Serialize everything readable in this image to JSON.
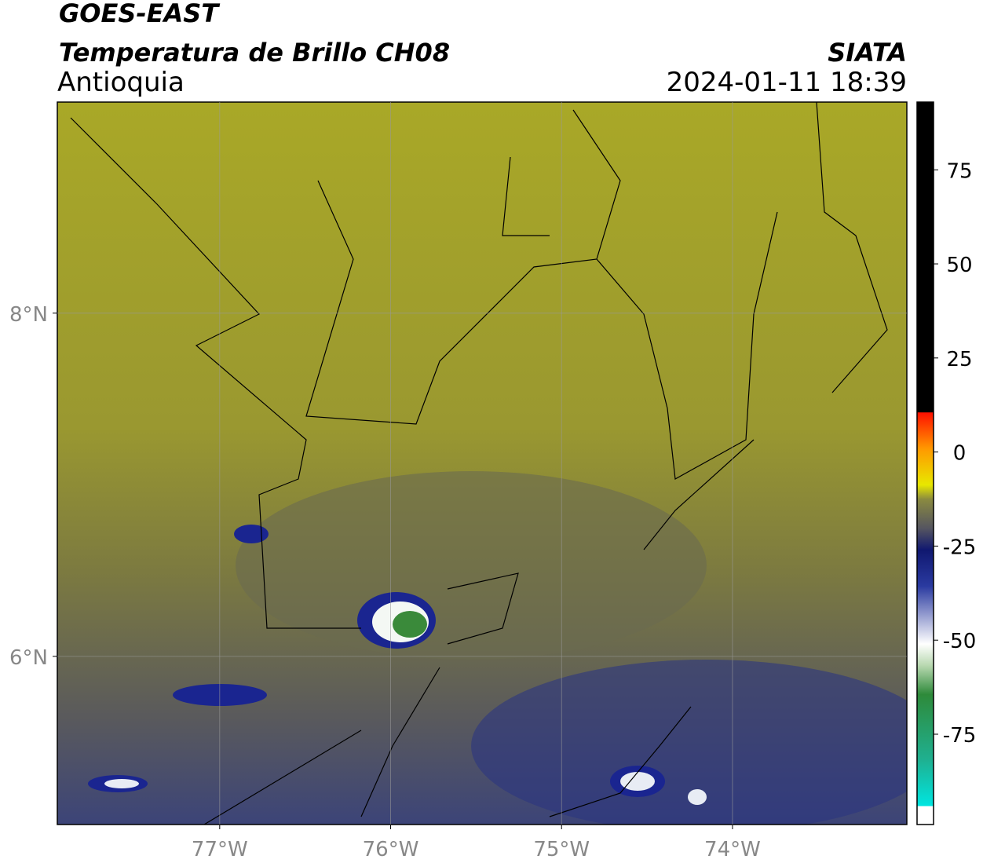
{
  "header": {
    "title": "GOES-EAST",
    "subtitle": "Temperatura de Brillo CH08",
    "region": "Antioquia",
    "source": "SIATA",
    "datetime": "2024-01-11 18:39"
  },
  "map": {
    "xlim": [
      -77.95,
      -72.98
    ],
    "ylim": [
      5.02,
      9.23
    ],
    "xticks": [
      {
        "value": -77,
        "label": "77°W"
      },
      {
        "value": -76,
        "label": "76°W"
      },
      {
        "value": -75,
        "label": "75°W"
      },
      {
        "value": -74,
        "label": "74°W"
      }
    ],
    "yticks": [
      {
        "value": 8,
        "label": "8°N"
      },
      {
        "value": 6,
        "label": "6°N"
      }
    ],
    "grid": true
  },
  "colorbar": {
    "lim": [
      -99,
      93
    ],
    "ticks": [
      75,
      50,
      25,
      0,
      -25,
      -50,
      -75
    ]
  }
}
